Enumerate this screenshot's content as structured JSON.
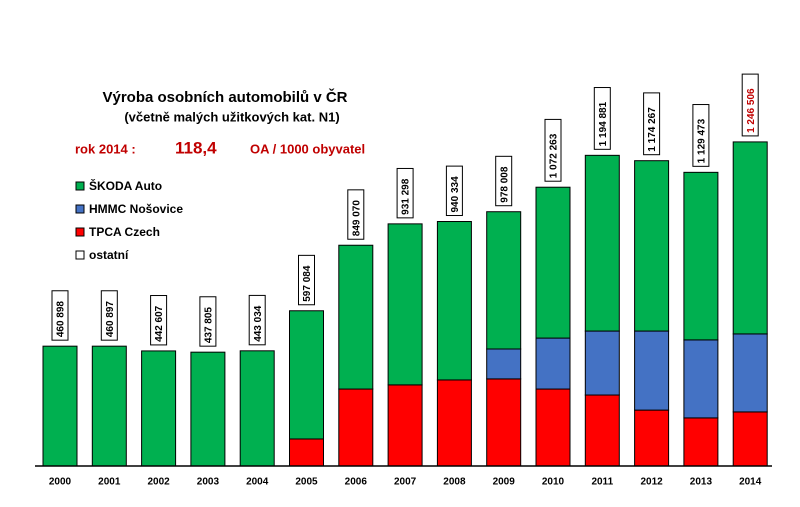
{
  "chart_data": {
    "type": "stacked_bar",
    "title": "Výroba osobních automobilů v ČR",
    "subtitle": "(včetně malých užitkových kat. N1)",
    "annotation": {
      "prefix": "rok 2014 :",
      "value": "118,4",
      "unit": "OA / 1000 obyvatel"
    },
    "categories": [
      "2000",
      "2001",
      "2002",
      "2003",
      "2004",
      "2005",
      "2006",
      "2007",
      "2008",
      "2009",
      "2010",
      "2011",
      "2012",
      "2013",
      "2014"
    ],
    "series": [
      {
        "name": "TPCA Czech",
        "color": "#ff0000",
        "values": [
          0,
          0,
          0,
          0,
          0,
          104000,
          296000,
          312000,
          331000,
          335000,
          296000,
          273000,
          215000,
          185000,
          208000
        ]
      },
      {
        "name": "HMMC Nošovice",
        "color": "#4472c4",
        "values": [
          0,
          0,
          0,
          0,
          0,
          0,
          0,
          0,
          0,
          115000,
          196000,
          246000,
          304000,
          300000,
          300000
        ]
      },
      {
        "name": "ŠKODA Auto",
        "color": "#00b050",
        "values": [
          460898,
          460897,
          442607,
          437805,
          443034,
          493084,
          553070,
          619298,
          609334,
          528008,
          580263,
          675881,
          655267,
          644473,
          738506
        ]
      },
      {
        "name": "ostatní",
        "color": "#ffffff",
        "values": [
          0,
          0,
          0,
          0,
          0,
          0,
          0,
          0,
          0,
          0,
          0,
          0,
          0,
          0,
          0
        ]
      }
    ],
    "legend_order": [
      2,
      1,
      0,
      3
    ],
    "totals": [
      460898,
      460897,
      442607,
      437805,
      443034,
      597084,
      849070,
      931298,
      940334,
      978008,
      1072263,
      1194881,
      1174267,
      1129473,
      1246506
    ],
    "total_labels": [
      "460 898",
      "460 897",
      "442 607",
      "437 805",
      "443 034",
      "597 084",
      "849 070",
      "931 298",
      "940 334",
      "978 008",
      "1 072 263",
      "1 194 881",
      "1 174 267",
      "1 129 473",
      "1 246 506"
    ],
    "highlight_color": "#c00000",
    "ylim": [
      0,
      1300000
    ]
  }
}
